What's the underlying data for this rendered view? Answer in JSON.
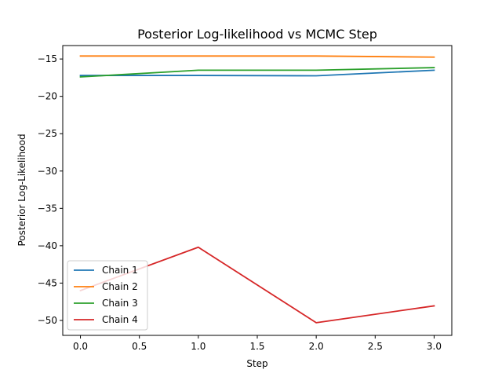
{
  "chart_data": {
    "type": "line",
    "title": "Posterior Log-likelihood vs MCMC Step",
    "xlabel": "Step",
    "ylabel": "Posterior Log-Likelihood",
    "x": [
      0.0,
      1.0,
      2.0,
      3.0
    ],
    "xlim": [
      -0.15,
      3.15
    ],
    "ylim": [
      -52,
      -13.2
    ],
    "xticks": [
      0.0,
      0.5,
      1.0,
      1.5,
      2.0,
      2.5,
      3.0
    ],
    "xtick_labels": [
      "0.0",
      "0.5",
      "1.0",
      "1.5",
      "2.0",
      "2.5",
      "3.0"
    ],
    "yticks": [
      -15,
      -20,
      -25,
      -30,
      -35,
      -40,
      -45,
      -50
    ],
    "ytick_labels": [
      "−15",
      "−20",
      "−25",
      "−30",
      "−35",
      "−40",
      "−45",
      "−50"
    ],
    "grid": false,
    "legend_position": "lower-left",
    "series": [
      {
        "name": "Chain 1",
        "color": "#1f77b4",
        "values": [
          -17.2,
          -17.2,
          -17.25,
          -16.5
        ]
      },
      {
        "name": "Chain 2",
        "color": "#ff7f0e",
        "values": [
          -14.6,
          -14.6,
          -14.6,
          -14.75
        ]
      },
      {
        "name": "Chain 3",
        "color": "#2ca02c",
        "values": [
          -17.4,
          -16.5,
          -16.5,
          -16.15
        ]
      },
      {
        "name": "Chain 4",
        "color": "#d62728",
        "values": [
          -46.0,
          -40.2,
          -50.3,
          -48.05
        ]
      }
    ]
  }
}
